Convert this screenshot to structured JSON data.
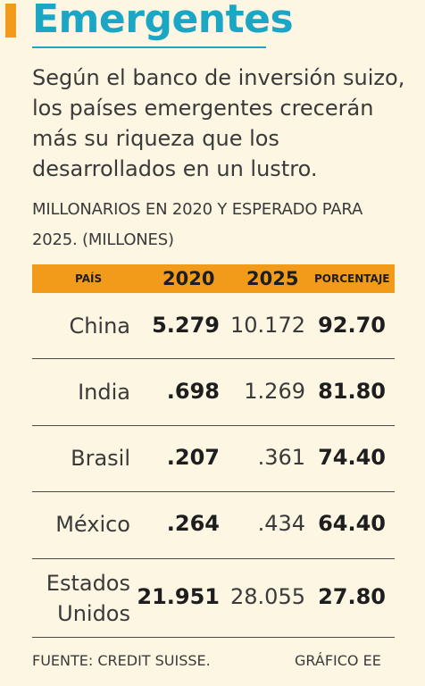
{
  "header": {
    "title": "Emergentes",
    "subtitle": "Según el banco de inversión suizo, los países emergentes crecerán más su riqueza que los desarrollados en un lustro.",
    "caption": "MILLONARIOS EN 2020 Y ESPERADO PARA 2025.  (MILLONES)"
  },
  "colors": {
    "accent": "#f29a1a",
    "title": "#1aa6c4",
    "background": "#fdf6e3"
  },
  "chart_data": {
    "type": "table",
    "columns": [
      "PAÍS",
      "2020",
      "2025",
      "PORCENTAJE"
    ],
    "rows": [
      {
        "country_lines": [
          "China"
        ],
        "v2020": "5.279",
        "v2025": "10.172",
        "pct": "92.70"
      },
      {
        "country_lines": [
          "India"
        ],
        "v2020": ".698",
        "v2025": "1.269",
        "pct": "81.80"
      },
      {
        "country_lines": [
          "Brasil"
        ],
        "v2020": ".207",
        "v2025": ".361",
        "pct": "74.40"
      },
      {
        "country_lines": [
          "México"
        ],
        "v2020": ".264",
        "v2025": ".434",
        "pct": "64.40"
      },
      {
        "country_lines": [
          "Estados",
          "Unidos"
        ],
        "v2020": "21.951",
        "v2025": "28.055",
        "pct": "27.80"
      }
    ]
  },
  "footer": {
    "source": "FUENTE: CREDIT SUISSE.",
    "credit": "GRÁFICO EE"
  }
}
